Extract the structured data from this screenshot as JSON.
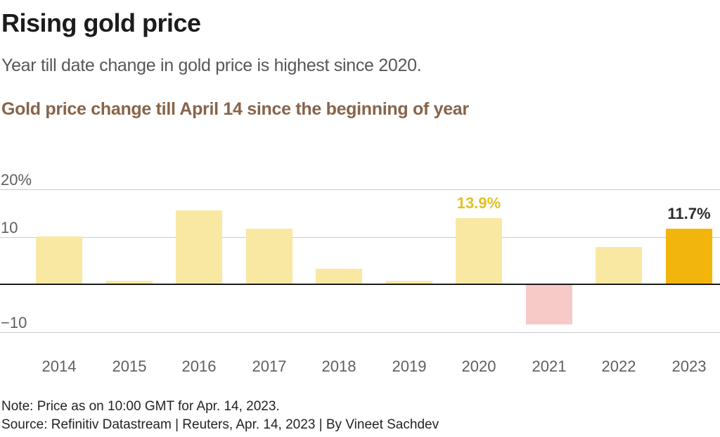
{
  "header": {
    "title": "Rising gold price",
    "subtitle": "Year till date change in gold price is highest since 2020."
  },
  "chart_data": {
    "type": "bar",
    "title": "Gold price change till April 14 since the beginning of year",
    "categories": [
      "2014",
      "2015",
      "2016",
      "2017",
      "2018",
      "2019",
      "2020",
      "2021",
      "2022",
      "2023"
    ],
    "values": [
      10.0,
      0.8,
      15.6,
      11.7,
      3.2,
      0.7,
      13.9,
      -8.5,
      7.9,
      11.7
    ],
    "unit": "%",
    "xlabel": "",
    "ylabel": "",
    "ylim": [
      -12,
      22
    ],
    "yticks": [
      {
        "value": 20,
        "label": "20%"
      },
      {
        "value": 10,
        "label": "10"
      },
      {
        "value": -10,
        "label": "−10"
      }
    ],
    "grid": "horizontal",
    "legend": "none",
    "highlight_category": "2023",
    "annotations": [
      {
        "category": "2020",
        "text": "13.9%",
        "color": "#e1c21e"
      },
      {
        "category": "2023",
        "text": "11.7%",
        "color": "#2a2c2e"
      }
    ],
    "colors": {
      "bar_default": "#f8e8a2",
      "bar_highlight": "#f2b50b",
      "bar_negative": "#f8cac7",
      "gridline": "#c9cacb",
      "zero_line": "#1a1a1a",
      "tick_label": "#5d5f62"
    }
  },
  "footer": {
    "note": "Note: Price as on 10:00 GMT for Apr. 14, 2023.",
    "source": "Source: Refinitiv Datastream | Reuters, Apr. 14, 2023 | By Vineet Sachdev"
  }
}
